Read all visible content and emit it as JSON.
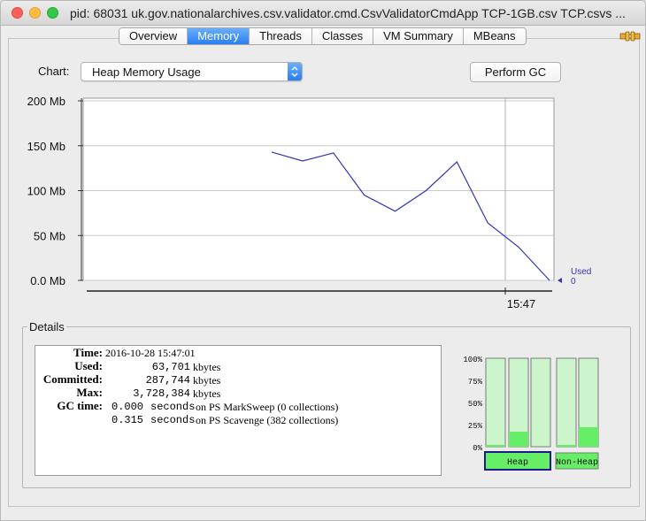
{
  "window": {
    "title": "pid: 68031 uk.gov.nationalarchives.csv.validator.cmd.CsvValidatorCmdApp TCP-1GB.csv TCP.csvs ..."
  },
  "tabs": [
    {
      "label": "Overview",
      "active": false
    },
    {
      "label": "Memory",
      "active": true
    },
    {
      "label": "Threads",
      "active": false
    },
    {
      "label": "Classes",
      "active": false
    },
    {
      "label": "VM Summary",
      "active": false
    },
    {
      "label": "MBeans",
      "active": false
    }
  ],
  "chart_controls": {
    "chart_label": "Chart:",
    "chart_select_value": "Heap Memory Usage",
    "perform_gc_label": "Perform GC"
  },
  "chart_data": {
    "type": "line",
    "ylim": [
      0,
      200
    ],
    "yticks": [
      {
        "value": 0,
        "label": "0.0 Mb"
      },
      {
        "value": 50,
        "label": "50 Mb"
      },
      {
        "value": 100,
        "label": "100 Mb"
      },
      {
        "value": 150,
        "label": "150 Mb"
      },
      {
        "value": 200,
        "label": "200 Mb"
      }
    ],
    "x_tick_label": "15:47",
    "series": [
      {
        "name": "Used",
        "color": "#3333bb",
        "values": [
          143,
          133,
          142,
          95,
          77,
          100,
          132,
          64,
          37,
          0
        ],
        "current_value_label": "0"
      }
    ],
    "grid": true
  },
  "details": {
    "legend": "Details",
    "time_label": "Time:",
    "time_value": "2016-10-28 15:47:01",
    "used_label": "Used:",
    "used_value": "63,701",
    "used_unit": "kbytes",
    "committed_label": "Committed:",
    "committed_value": "287,744",
    "committed_unit": "kbytes",
    "max_label": "Max:",
    "max_value": "3,728,384",
    "max_unit": "kbytes",
    "gc_time_label": "GC time:",
    "gc1_value": "0.000",
    "gc1_unit": "seconds",
    "gc1_desc": "on PS MarkSweep (0 collections)",
    "gc2_value": "0.315",
    "gc2_unit": "seconds",
    "gc2_desc": "on PS Scavenge (382 collections)"
  },
  "memory_pools": {
    "scale_labels": [
      "100%",
      "75%",
      "50%",
      "25%",
      "0%"
    ],
    "heap_label": "Heap",
    "non_heap_label": "Non-Heap",
    "heap_bars": [
      0.02,
      0.17,
      0.0
    ],
    "non_heap_bars": [
      0.02,
      0.22
    ],
    "fill_color": "#66ee66",
    "empty_color": "#ccf5cc"
  }
}
